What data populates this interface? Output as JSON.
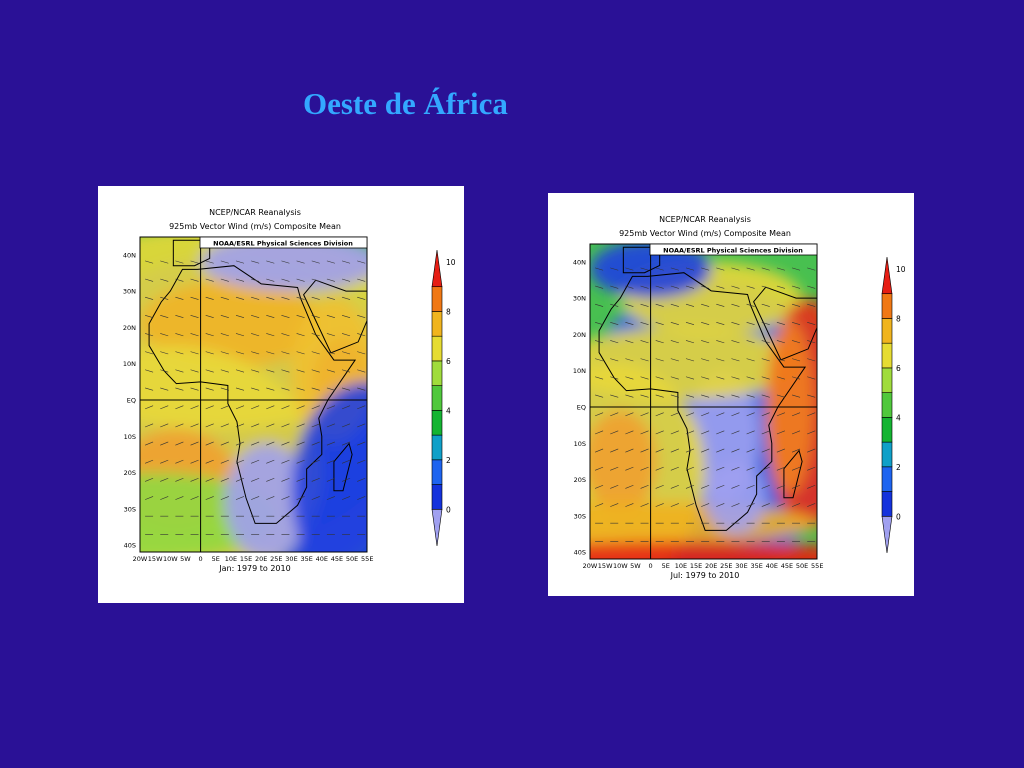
{
  "slide": {
    "title": "Oeste de África"
  },
  "panels": [
    {
      "header": [
        "NCEP/NCAR Reanalysis",
        "925mb Vector Wind (m/s) Composite Mean"
      ],
      "credit": "NOAA/ESRL Physical Sciences Division",
      "lat_labels": [
        "40N",
        "30N",
        "20N",
        "10N",
        "EQ",
        "10S",
        "20S",
        "30S",
        "40S"
      ],
      "lon_labels": [
        "20W",
        "15W",
        "10W",
        "5W",
        "0",
        "5E",
        "10E",
        "15E",
        "20E",
        "25E",
        "30E",
        "35E",
        "40E",
        "45E",
        "50E",
        "55E"
      ],
      "period": "Jan: 1979 to 2010",
      "colorbar_labels": [
        0,
        2,
        4,
        6,
        8,
        10
      ]
    },
    {
      "header": [
        "NCEP/NCAR Reanalysis",
        "925mb Vector Wind (m/s) Composite Mean"
      ],
      "credit": "NOAA/ESRL Physical Sciences Division",
      "lat_labels": [
        "40N",
        "30N",
        "20N",
        "10N",
        "EQ",
        "10S",
        "20S",
        "30S",
        "40S"
      ],
      "lon_labels": [
        "20W",
        "15W",
        "10W",
        "5W",
        "0",
        "5E",
        "10E",
        "15E",
        "20E",
        "25E",
        "30E",
        "35E",
        "40E",
        "45E",
        "50E",
        "55E"
      ],
      "period": "Jul: 1979 to 2010",
      "colorbar_labels": [
        0,
        2,
        4,
        6,
        8,
        10
      ]
    }
  ]
}
